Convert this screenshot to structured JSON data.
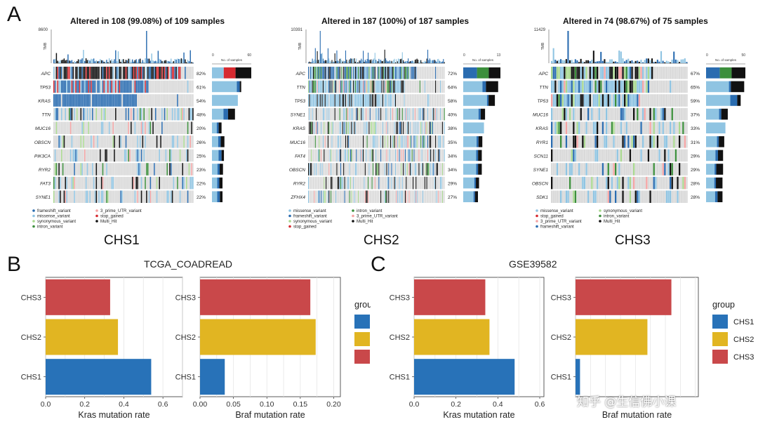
{
  "panel_letters": {
    "a": "A",
    "b": "B",
    "c": "C"
  },
  "watermark": "知乎 @生信佛小课",
  "legend_group_title": "group",
  "colors": {
    "missense_variant": "#8fc4e2",
    "frameshift_variant": "#2a6cb0",
    "synonymous_variant": "#a9d88f",
    "intron_variant": "#3c8f3c",
    "three_prime_UTR_variant": "#f4a3a3",
    "stop_gained": "#d62a30",
    "Multi_Hit": "#111111",
    "CHS1": "#2872b8",
    "CHS2": "#e1b522",
    "CHS3": "#c9484a",
    "background_cell": "#d9d9d9"
  },
  "oncoplots": [
    {
      "name": "CHS1",
      "title": "Altered in 108 (99.08%) of 109 samples",
      "tmb_max": "8600",
      "tmb_label": "TMB",
      "samples_axis_title": "No. of samples",
      "samples_ticks": [
        "0",
        "60"
      ],
      "genes": [
        "APC",
        "TP53",
        "KRAS",
        "TTN",
        "MUC16",
        "OBSCN",
        "PIK3CA",
        "RYR2",
        "FAT3",
        "SYNE1"
      ],
      "pcts": [
        "82%",
        "61%",
        "54%",
        "48%",
        "20%",
        "26%",
        "25%",
        "23%",
        "22%",
        "22%"
      ],
      "legend": [
        "frameshift_variant",
        "3_prime_UTR_variant",
        "missense_variant",
        "stop_gained",
        "synonymous_variant",
        "Multi_Hit",
        "intron_variant"
      ]
    },
    {
      "name": "CHS2",
      "title": "Altered in 187 (100%) of 187 samples",
      "tmb_max": "10391",
      "tmb_label": "TMB",
      "samples_axis_title": "No. of samples",
      "samples_ticks": [
        "0",
        "134"
      ],
      "genes": [
        "APC",
        "TTN",
        "TP53",
        "SYNE1",
        "KRAS",
        "MUC16",
        "FAT4",
        "OBSCN",
        "RYR2",
        "ZFHX4"
      ],
      "pcts": [
        "72%",
        "64%",
        "58%",
        "40%",
        "38%",
        "35%",
        "34%",
        "34%",
        "29%",
        "27%"
      ],
      "legend": [
        "missense_variant",
        "intron_variant",
        "frameshift_variant",
        "3_prime_UTR_variant",
        "synonymous_variant",
        "Multi_Hit",
        "stop_gained"
      ]
    },
    {
      "name": "CHS3",
      "title": "Altered in 74 (98.67%) of 75 samples",
      "tmb_max": "11429",
      "tmb_label": "TMB",
      "samples_axis_title": "No. of samples",
      "samples_ticks": [
        "0",
        "50"
      ],
      "genes": [
        "APC",
        "TTN",
        "TP53",
        "MUC16",
        "KRAS",
        "RYR1",
        "SCN11",
        "SYNE1",
        "OBSCN",
        "SDK1"
      ],
      "pcts": [
        "67%",
        "65%",
        "59%",
        "37%",
        "33%",
        "31%",
        "29%",
        "29%",
        "28%",
        "28%"
      ],
      "legend": [
        "missense_variant",
        "synonymous_variant",
        "stop_gained",
        "intron_variant",
        "3_prime_UTR_variant",
        "Multi_Hit",
        "frameshift_variant"
      ]
    }
  ],
  "chart_data": [
    {
      "type": "bar",
      "orientation": "horizontal",
      "panel": "B",
      "group_title": "TCGA_COADREAD",
      "categories": [
        "CHS3",
        "CHS2",
        "CHS1"
      ],
      "values": [
        0.33,
        0.37,
        0.54
      ],
      "xlabel": "Kras mutation rate",
      "ylabel": "",
      "xlim": [
        0,
        0.7
      ],
      "xticks": [
        "0.0",
        "0.2",
        "0.4",
        "0.6"
      ],
      "grid": true
    },
    {
      "type": "bar",
      "orientation": "horizontal",
      "panel": "B",
      "group_title": "TCGA_COADREAD",
      "categories": [
        "CHS3",
        "CHS2",
        "CHS1"
      ],
      "values": [
        0.165,
        0.173,
        0.037
      ],
      "xlabel": "Braf mutation rate",
      "ylabel": "",
      "xlim": [
        0,
        0.21
      ],
      "xticks": [
        "0.00",
        "0.05",
        "0.10",
        "0.15",
        "0.20"
      ],
      "grid": true,
      "legend": {
        "title": "group",
        "entries": [
          "CHS1",
          "CHS2",
          "CHS3"
        ],
        "placement": "right"
      }
    },
    {
      "type": "bar",
      "orientation": "horizontal",
      "panel": "C",
      "group_title": "GSE39582",
      "categories": [
        "CHS3",
        "CHS2",
        "CHS1"
      ],
      "values": [
        0.34,
        0.36,
        0.48
      ],
      "xlabel": "Kras mutation rate",
      "ylabel": "",
      "xlim": [
        0,
        0.62
      ],
      "xticks": [
        "0.0",
        "0.2",
        "0.4",
        "0.6"
      ],
      "grid": true
    },
    {
      "type": "bar",
      "orientation": "horizontal",
      "panel": "C",
      "group_title": "GSE39582",
      "categories": [
        "CHS3",
        "CHS2",
        "CHS1"
      ],
      "values": [
        0.64,
        0.48,
        0.03
      ],
      "xlabel": "Braf mutation rate",
      "ylabel": "",
      "xlim": [
        0,
        0.82
      ],
      "xticks": [],
      "grid": true,
      "legend": {
        "title": "group",
        "entries": [
          "CHS1",
          "CHS2",
          "CHS3"
        ],
        "placement": "right"
      }
    }
  ]
}
